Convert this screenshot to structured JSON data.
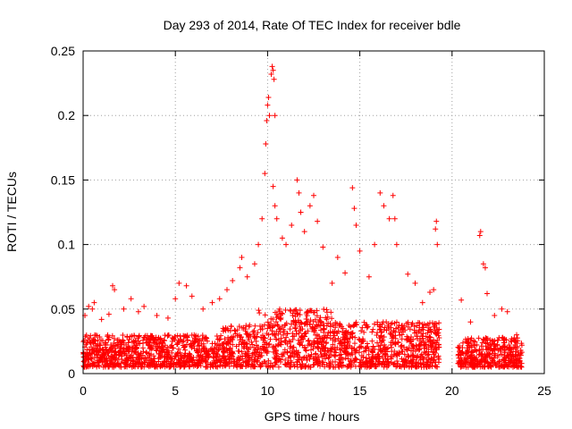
{
  "chart_data": {
    "type": "scatter",
    "title": "Day 293 of 2014, Rate Of TEC Index for receiver bdle",
    "xlabel": "GPS time / hours",
    "ylabel": "ROTI / TECUs",
    "xlim": [
      0,
      25
    ],
    "ylim": [
      0,
      0.25
    ],
    "x_ticks": [
      0,
      5,
      10,
      15,
      20,
      25
    ],
    "x_tick_labels": [
      "0",
      "5",
      "10",
      "15",
      "20",
      "25"
    ],
    "y_ticks": [
      0,
      0.05,
      0.1,
      0.15,
      0.2,
      0.25
    ],
    "y_tick_labels": [
      "0",
      "0.05",
      "0.1",
      "0.15",
      "0.2",
      "0.25"
    ],
    "grid": true,
    "marker": "+",
    "color": "#ff0000",
    "series": [
      {
        "name": "ROTI",
        "description": "dense scatter; baseline ~0.005-0.03 TECU for 0-19.3 h and 20.3-23.8 h, gap 19.3-20.3 h",
        "points": [
          [
            0.1,
            0.045
          ],
          [
            0.3,
            0.052
          ],
          [
            0.5,
            0.05
          ],
          [
            0.6,
            0.055
          ],
          [
            1.0,
            0.042
          ],
          [
            1.4,
            0.046
          ],
          [
            1.6,
            0.068
          ],
          [
            1.7,
            0.065
          ],
          [
            2.2,
            0.05
          ],
          [
            2.6,
            0.058
          ],
          [
            3.0,
            0.048
          ],
          [
            3.3,
            0.052
          ],
          [
            4.0,
            0.045
          ],
          [
            4.6,
            0.043
          ],
          [
            5.0,
            0.058
          ],
          [
            5.2,
            0.07
          ],
          [
            5.6,
            0.068
          ],
          [
            5.9,
            0.06
          ],
          [
            6.5,
            0.05
          ],
          [
            7.0,
            0.055
          ],
          [
            7.4,
            0.058
          ],
          [
            7.8,
            0.065
          ],
          [
            8.1,
            0.072
          ],
          [
            8.5,
            0.082
          ],
          [
            8.6,
            0.09
          ],
          [
            8.9,
            0.075
          ],
          [
            9.3,
            0.085
          ],
          [
            9.5,
            0.1
          ],
          [
            9.7,
            0.12
          ],
          [
            9.85,
            0.155
          ],
          [
            9.9,
            0.178
          ],
          [
            9.95,
            0.196
          ],
          [
            10.0,
            0.208
          ],
          [
            10.05,
            0.214
          ],
          [
            10.1,
            0.2
          ],
          [
            10.2,
            0.232
          ],
          [
            10.25,
            0.238
          ],
          [
            10.3,
            0.235
          ],
          [
            10.35,
            0.228
          ],
          [
            10.4,
            0.2
          ],
          [
            10.3,
            0.145
          ],
          [
            10.4,
            0.13
          ],
          [
            10.5,
            0.12
          ],
          [
            10.8,
            0.105
          ],
          [
            11.0,
            0.1
          ],
          [
            11.3,
            0.115
          ],
          [
            11.6,
            0.15
          ],
          [
            11.7,
            0.14
          ],
          [
            11.8,
            0.125
          ],
          [
            12.0,
            0.11
          ],
          [
            12.3,
            0.13
          ],
          [
            12.5,
            0.138
          ],
          [
            12.7,
            0.118
          ],
          [
            13.0,
            0.098
          ],
          [
            13.5,
            0.07
          ],
          [
            13.8,
            0.09
          ],
          [
            14.2,
            0.078
          ],
          [
            14.6,
            0.144
          ],
          [
            14.7,
            0.128
          ],
          [
            14.8,
            0.115
          ],
          [
            15.0,
            0.095
          ],
          [
            15.5,
            0.075
          ],
          [
            15.8,
            0.1
          ],
          [
            16.1,
            0.14
          ],
          [
            16.3,
            0.13
          ],
          [
            16.6,
            0.12
          ],
          [
            16.8,
            0.138
          ],
          [
            16.9,
            0.12
          ],
          [
            17.0,
            0.1
          ],
          [
            17.6,
            0.077
          ],
          [
            18.0,
            0.07
          ],
          [
            18.4,
            0.055
          ],
          [
            18.8,
            0.063
          ],
          [
            19.0,
            0.065
          ],
          [
            19.1,
            0.112
          ],
          [
            19.15,
            0.118
          ],
          [
            19.2,
            0.1
          ],
          [
            20.5,
            0.057
          ],
          [
            21.0,
            0.04
          ],
          [
            21.5,
            0.107
          ],
          [
            21.55,
            0.11
          ],
          [
            21.7,
            0.085
          ],
          [
            21.8,
            0.082
          ],
          [
            21.9,
            0.062
          ],
          [
            22.3,
            0.045
          ],
          [
            22.7,
            0.05
          ],
          [
            23.0,
            0.048
          ],
          [
            23.5,
            0.03
          ]
        ]
      }
    ]
  }
}
